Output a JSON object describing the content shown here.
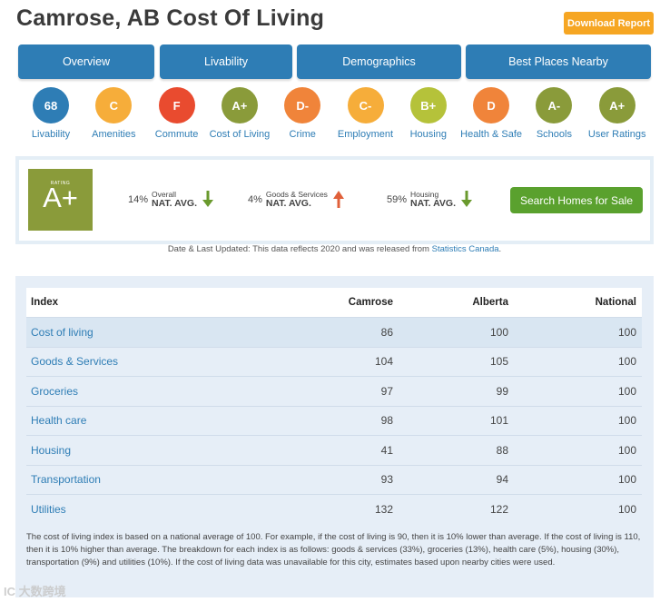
{
  "header": {
    "title": "Camrose, AB Cost Of Living",
    "download_label": "Download Report"
  },
  "tabs": [
    "Overview",
    "Livability",
    "Demographics",
    "Best Places Nearby"
  ],
  "grades": [
    {
      "grade": "68",
      "label": "Livability",
      "color": "#2e7db5"
    },
    {
      "grade": "C",
      "label": "Amenities",
      "color": "#f6ad3a"
    },
    {
      "grade": "F",
      "label": "Commute",
      "color": "#e94b2f"
    },
    {
      "grade": "A+",
      "label": "Cost of Living",
      "color": "#8a9b3a"
    },
    {
      "grade": "D-",
      "label": "Crime",
      "color": "#f0843a"
    },
    {
      "grade": "C-",
      "label": "Employment",
      "color": "#f6ad3a"
    },
    {
      "grade": "B+",
      "label": "Housing",
      "color": "#b5c23a"
    },
    {
      "grade": "D",
      "label": "Health & Safe",
      "color": "#f0843a"
    },
    {
      "grade": "A-",
      "label": "Schools",
      "color": "#8a9b3a"
    },
    {
      "grade": "A+",
      "label": "User Ratings",
      "color": "#8a9b3a"
    }
  ],
  "rating": {
    "label": "RATING",
    "grade": "A+",
    "metrics": [
      {
        "pct": "14%",
        "name": "Overall",
        "nat": "NAT. AVG.",
        "direction": "down",
        "arrow_color": "#6a9a2e"
      },
      {
        "pct": "4%",
        "name": "Goods & Services",
        "nat": "NAT. AVG.",
        "direction": "up",
        "arrow_color": "#e0603a"
      },
      {
        "pct": "59%",
        "name": "Housing",
        "nat": "NAT. AVG.",
        "direction": "down",
        "arrow_color": "#6a9a2e"
      }
    ],
    "search_label": "Search Homes for Sale"
  },
  "updated": {
    "text": "Date & Last Updated: This data reflects 2020 and was released from",
    "source": "Statistics Canada",
    "period": "."
  },
  "table": {
    "headers": [
      "Index",
      "Camrose",
      "Alberta",
      "National"
    ],
    "rows": [
      [
        "Cost of living",
        "86",
        "100",
        "100"
      ],
      [
        "Goods & Services",
        "104",
        "105",
        "100"
      ],
      [
        "Groceries",
        "97",
        "99",
        "100"
      ],
      [
        "Health care",
        "98",
        "101",
        "100"
      ],
      [
        "Housing",
        "41",
        "88",
        "100"
      ],
      [
        "Transportation",
        "93",
        "94",
        "100"
      ],
      [
        "Utilities",
        "132",
        "122",
        "100"
      ]
    ]
  },
  "note": "The cost of living index is based on a national average of 100. For example, if the cost of living is 90, then it is 10% lower than average. If the cost of living is 110, then it is 10% higher than average. The breakdown for each index is as follows: goods & services (33%), groceries (13%), health care (5%), housing (30%), transportation (9%) and utilities (10%). If the cost of living data was unavailable for this city, estimates based upon nearby cities were used.",
  "watermark": "IC 大数跨境"
}
